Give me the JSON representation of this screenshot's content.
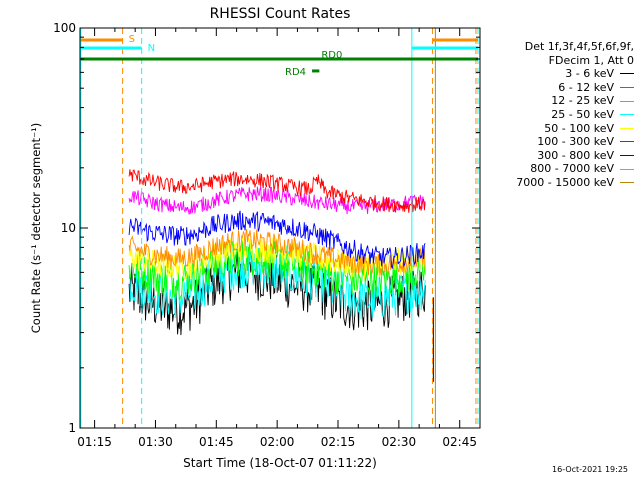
{
  "chart_data": {
    "type": "line",
    "title": "RHESSI Count Rates",
    "xlabel": "Start Time (18-Oct-07 01:11:22)",
    "ylabel": "Count Rate (s⁻¹ detector segment⁻¹)",
    "y_scale": "log",
    "ylim": [
      1,
      100
    ],
    "xlim_minutes": [
      71.4,
      170
    ],
    "x_ticks": [
      "01:15",
      "01:30",
      "01:45",
      "02:00",
      "02:15",
      "02:30",
      "02:45"
    ],
    "x_tick_minutes": [
      75,
      90,
      105,
      120,
      135,
      150,
      165
    ],
    "y_ticks": [
      "1",
      "10",
      "100"
    ],
    "y_tick_values": [
      1,
      10,
      100
    ],
    "data_start_minutes": 83.5,
    "data_end_minutes": 156.5,
    "legend": {
      "header_1": "Det 1f,3f,4f,5f,6f,9f,",
      "header_2": "FDecim 1, Att 0",
      "placement": "top-right, outside plot"
    },
    "series": [
      {
        "name": "3 - 6 keV",
        "color": "#000000",
        "x": [
          84,
          88,
          92,
          96,
          100,
          104,
          108,
          112,
          116,
          120,
          124,
          128,
          132,
          136,
          140,
          144,
          148,
          152,
          156
        ],
        "values": [
          4.8,
          4.3,
          4.0,
          3.9,
          4.2,
          5.2,
          5.8,
          6.0,
          5.8,
          5.5,
          5.2,
          5.0,
          4.6,
          4.2,
          4.0,
          4.1,
          4.3,
          4.6,
          4.9
        ]
      },
      {
        "name": "6 - 12 keV",
        "color": "#ff00ff",
        "x": [
          84,
          88,
          92,
          96,
          100,
          104,
          108,
          112,
          116,
          120,
          124,
          128,
          132,
          136,
          140,
          144,
          148,
          152,
          156
        ],
        "values": [
          14.5,
          13.6,
          13.0,
          12.6,
          12.8,
          13.6,
          14.3,
          14.8,
          14.8,
          14.5,
          14.0,
          13.5,
          13.2,
          12.9,
          12.7,
          12.9,
          13.1,
          13.4,
          13.6
        ]
      },
      {
        "name": "12 - 25 keV",
        "color": "#00ff00",
        "x": [
          84,
          88,
          92,
          96,
          100,
          104,
          108,
          112,
          116,
          120,
          124,
          128,
          132,
          136,
          140,
          144,
          148,
          152,
          156
        ],
        "values": [
          6.4,
          5.9,
          5.6,
          5.5,
          5.8,
          6.5,
          7.0,
          7.2,
          7.1,
          6.9,
          6.6,
          6.3,
          6.0,
          5.7,
          5.5,
          5.5,
          5.6,
          5.8,
          6.0
        ]
      },
      {
        "name": "25 - 50 keV",
        "color": "#00ffff",
        "x": [
          84,
          88,
          92,
          96,
          100,
          104,
          108,
          112,
          116,
          120,
          124,
          128,
          132,
          136,
          140,
          144,
          148,
          152,
          156
        ],
        "values": [
          5.4,
          4.9,
          4.6,
          4.5,
          4.8,
          5.6,
          6.2,
          6.5,
          6.4,
          6.1,
          5.8,
          5.5,
          5.1,
          4.7,
          4.4,
          4.4,
          4.6,
          4.8,
          5.0
        ]
      },
      {
        "name": "50 - 100 keV",
        "color": "#ffff00",
        "x": [
          84,
          88,
          92,
          96,
          100,
          104,
          108,
          112,
          116,
          120,
          124,
          128,
          132,
          136,
          140,
          144,
          148,
          152,
          156
        ],
        "values": [
          7.2,
          6.8,
          6.5,
          6.4,
          6.6,
          7.2,
          7.7,
          7.9,
          7.9,
          7.7,
          7.4,
          7.2,
          7.0,
          6.7,
          6.5,
          6.6,
          6.7,
          6.9,
          7.0
        ]
      },
      {
        "name": "100 - 300 keV",
        "color": "#ff0000",
        "x": [
          84,
          88,
          92,
          96,
          100,
          104,
          108,
          112,
          116,
          120,
          124,
          128,
          130,
          132,
          136,
          140,
          144,
          148,
          152,
          156
        ],
        "values": [
          18.5,
          17.3,
          16.5,
          16.0,
          16.2,
          17.0,
          17.5,
          17.6,
          17.3,
          16.7,
          16.0,
          15.6,
          17.2,
          15.2,
          14.4,
          13.8,
          13.4,
          13.1,
          13.0,
          13.2
        ]
      },
      {
        "name": "300 - 800 keV",
        "color": "#0000ff",
        "x": [
          84,
          88,
          92,
          96,
          100,
          104,
          108,
          112,
          116,
          120,
          124,
          128,
          132,
          136,
          140,
          144,
          148,
          152,
          156
        ],
        "values": [
          10.2,
          9.6,
          9.3,
          9.1,
          9.4,
          10.2,
          10.7,
          10.9,
          10.8,
          10.5,
          10.1,
          9.6,
          8.9,
          8.2,
          7.6,
          7.2,
          7.1,
          7.3,
          7.6
        ]
      },
      {
        "name": "800 - 7000 keV",
        "color": "#ff8c00",
        "x": [
          84,
          88,
          92,
          96,
          100,
          104,
          108,
          112,
          116,
          120,
          124,
          128,
          132,
          136,
          140,
          144,
          148,
          152,
          156
        ],
        "values": [
          8.0,
          7.5,
          7.2,
          7.0,
          7.3,
          8.0,
          8.5,
          8.7,
          8.6,
          8.3,
          8.0,
          7.6,
          7.2,
          6.9,
          6.6,
          6.5,
          6.6,
          6.8,
          7.0
        ]
      },
      {
        "name": "7000 - 15000 keV",
        "color": "#b8860b",
        "x": [],
        "values": []
      }
    ],
    "annotations": {
      "flags_label_s": "S",
      "flags_label_n": "N",
      "flags_label_rd0": "RD0",
      "flags_label_rd4": "RD4",
      "vlines_cyan_minutes": [
        71.6,
        86.6,
        153.2,
        169.5
      ],
      "vlines_orange_minutes": [
        81.9,
        158.3,
        169.0
      ],
      "vline_darkorange_minutes": [
        159.0
      ],
      "s_flag_segments": [
        [
          71.6,
          81.9
        ],
        [
          158.3,
          169.5
        ]
      ],
      "n_flag_segments": [
        [
          71.6,
          86.6
        ],
        [
          153.2,
          169.5
        ]
      ],
      "rd0_y": 70,
      "rd0_segment": [
        71.6,
        169.5
      ],
      "rd4_segment": [
        128.6,
        130.4
      ],
      "rd4_y": 61
    },
    "grid": false
  },
  "timestamp": "16-Oct-2021 19:25"
}
